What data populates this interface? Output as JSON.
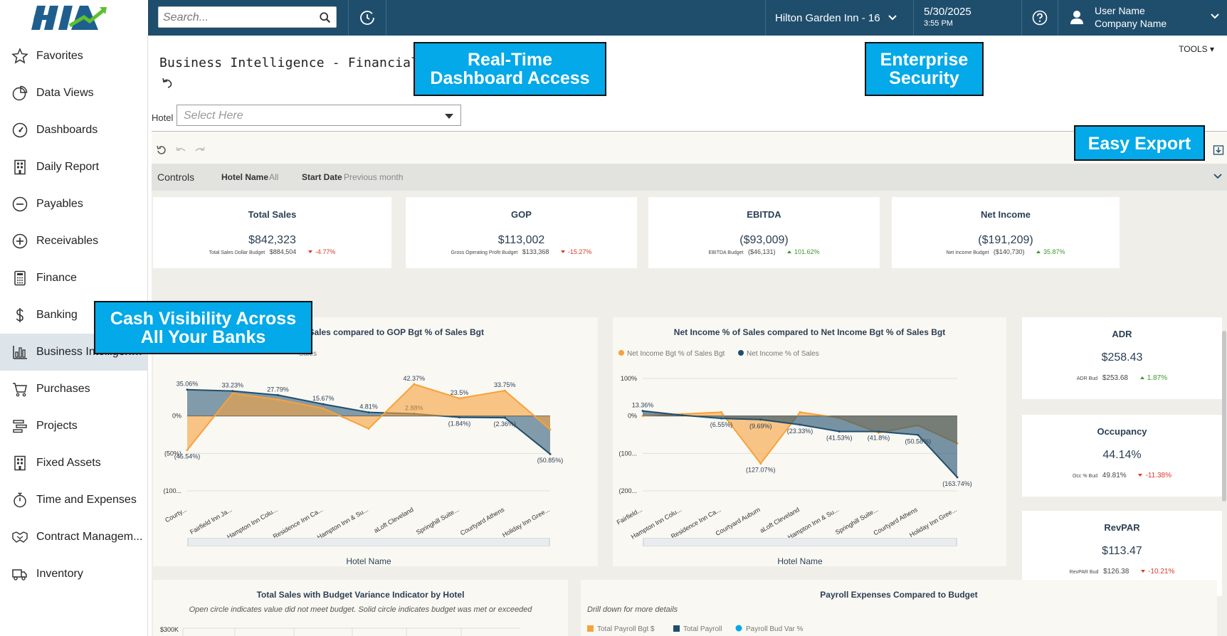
{
  "search": {
    "placeholder": "Search..."
  },
  "header": {
    "hotel": "Hilton Garden Inn - 16",
    "date": "5/30/2025",
    "time": "3:55 PM",
    "user_name": "User Name",
    "company_name": "Company Name"
  },
  "sidebar": {
    "items": [
      {
        "label": "Favorites",
        "icon": "star-icon"
      },
      {
        "label": "Data Views",
        "icon": "pie-chart-icon"
      },
      {
        "label": "Dashboards",
        "icon": "gauge-icon"
      },
      {
        "label": "Daily Report",
        "icon": "building-icon"
      },
      {
        "label": "Payables",
        "icon": "minus-circle-icon"
      },
      {
        "label": "Receivables",
        "icon": "plus-circle-icon"
      },
      {
        "label": "Finance",
        "icon": "calculator-icon"
      },
      {
        "label": "Banking",
        "icon": "dollar-icon"
      },
      {
        "label": "Business Intelligence",
        "icon": "bar-chart-icon"
      },
      {
        "label": "Purchases",
        "icon": "cart-icon"
      },
      {
        "label": "Projects",
        "icon": "tasks-icon"
      },
      {
        "label": "Fixed Assets",
        "icon": "building-icon"
      },
      {
        "label": "Time and Expenses",
        "icon": "stopwatch-icon"
      },
      {
        "label": "Contract Managem...",
        "icon": "handshake-icon"
      },
      {
        "label": "Inventory",
        "icon": "truck-icon"
      }
    ],
    "active": "Business Intelligence"
  },
  "page": {
    "title": "Business Intelligence - Financial Recap",
    "tools": "TOOLS",
    "hotel_label": "Hotel",
    "hotel_placeholder": "Select Here"
  },
  "controls": {
    "title": "Controls",
    "hotel_name_key": "Hotel Name",
    "hotel_name_val": "All",
    "start_date_key": "Start Date",
    "start_date_val": "Previous month"
  },
  "kpis": [
    {
      "title": "Total Sales",
      "value": "$842,323",
      "budget_label": "Total Sales Dollar Budget",
      "budget": "$884,504",
      "variance": "-4.77%",
      "dir": "down"
    },
    {
      "title": "GOP",
      "value": "$113,002",
      "budget_label": "Gross Operating Profit Budget",
      "budget": "$133,368",
      "variance": "-15.27%",
      "dir": "down"
    },
    {
      "title": "EBITDA",
      "value": "($93,009)",
      "budget_label": "EBITDA Budget",
      "budget": "($46,131)",
      "variance": "101.62%",
      "dir": "up"
    },
    {
      "title": "Net Income",
      "value": "($191,209)",
      "budget_label": "Net Income Budget",
      "budget": "($140,730)",
      "variance": "35.87%",
      "dir": "up"
    }
  ],
  "side_kpis": [
    {
      "title": "ADR",
      "value": "$258.43",
      "budget_label": "ADR Bud",
      "budget": "$253.68",
      "variance": "1.87%",
      "dir": "up"
    },
    {
      "title": "Occupancy",
      "value": "44.14%",
      "budget_label": "Occ % Bud",
      "budget": "49.81%",
      "variance": "-11.38%",
      "dir": "down"
    },
    {
      "title": "RevPAR",
      "value": "$113.47",
      "budget_label": "RevPAR Bud",
      "budget": "$126.38",
      "variance": "-10.21%",
      "dir": "down"
    }
  ],
  "colors": {
    "actual": "#1f4e6d",
    "budget": "#f7a23c",
    "accent": "#03a9e8",
    "topbar": "#1f4e6d"
  },
  "chart_data": [
    {
      "type": "area",
      "title": "GOP % of Sales compared to GOP Bgt % of Sales Bgt",
      "xlabel": "Hotel Name",
      "legend_visible": "Sales",
      "y_ticks": [
        "0%",
        "(50%)",
        "(100..."
      ],
      "ylim": [
        -100,
        50
      ],
      "categories": [
        "Courty...",
        "Fairfield Inn Ja...",
        "Hampton Inn Colu...",
        "Residence Inn Ca...",
        "Hampton Inn & Su...",
        "aLoft Cleveland",
        "Springhill Suite...",
        "Courtyard Athens",
        "Holiday Inn Gree..."
      ],
      "series": [
        {
          "name": "GOP % of Sales",
          "values": [
            35.06,
            33.23,
            27.79,
            15.67,
            4.81,
            2.88,
            -1.84,
            -2.36,
            -50.85
          ],
          "labels": [
            "35.06%",
            "33.23%",
            "27.79%",
            "15.67%",
            "4.81%",
            "2.88%",
            "(1.84%)",
            "(2.36%)",
            "(50.85%)"
          ]
        },
        {
          "name": "GOP Bgt % of Sales Bgt",
          "values": [
            -45.54,
            30,
            22,
            10,
            -17,
            42.37,
            23.5,
            33.75,
            -18
          ],
          "labels": [
            "(45.54%)",
            "",
            "",
            "",
            "",
            "42.37%",
            "23.5%",
            "33.75%",
            ""
          ]
        }
      ]
    },
    {
      "type": "area",
      "title": "Net Income % of Sales compared to Net Income Bgt % of Sales Bgt",
      "xlabel": "Hotel Name",
      "y_ticks": [
        "100%",
        "0%",
        "(100...",
        "(200..."
      ],
      "ylim": [
        -200,
        100
      ],
      "categories": [
        "Fairfield...",
        "Hampton Inn Colu...",
        "Residence Inn Ca...",
        "Courtyard Auburn",
        "aLoft Cleveland",
        "Hampton Inn & Su...",
        "Springhill Suite...",
        "Courtyard Athens",
        "Holiday Inn Gree..."
      ],
      "series": [
        {
          "name": "Net Income Bgt % of Sales Bgt",
          "values": [
            0,
            5,
            10,
            -127.07,
            10,
            -5,
            -45,
            -25,
            -73
          ],
          "labels": [
            "",
            "",
            "",
            "(127.07%)",
            "",
            "",
            "",
            "",
            ""
          ]
        },
        {
          "name": "Net Income % of Sales",
          "values": [
            13.36,
            2,
            -6.55,
            -9.69,
            -23.33,
            -41.53,
            -41.8,
            -50.58,
            -163.74
          ],
          "labels": [
            "13.36%",
            "",
            "(6.55%)",
            "(9.69%)",
            "(23.33%)",
            "(41.53%)",
            "(41.8%)",
            "(50.58%)",
            "(163.74%)"
          ]
        }
      ]
    },
    {
      "type": "scatter",
      "title": "Total Sales with Budget Variance Indicator by Hotel",
      "subtitle": "Open circle indicates value did not meet budget. Solid circle indicates budget was met or exceeded",
      "y_ticks": [
        "$300K"
      ]
    },
    {
      "type": "bar",
      "title": "Payroll Expenses Compared to Budget",
      "subtitle": "Drill down for more details",
      "series": [
        {
          "name": "Total Payroll Bgt $"
        },
        {
          "name": "Total Payroll"
        },
        {
          "name": "Payroll Bud Var %"
        }
      ]
    }
  ],
  "callouts": {
    "realtime": [
      "Real-Time",
      "Dashboard Access"
    ],
    "security": [
      "Enterprise",
      "Security"
    ],
    "export": "Easy Export",
    "cash": [
      "Cash Visibility Across",
      "All Your Banks"
    ]
  }
}
